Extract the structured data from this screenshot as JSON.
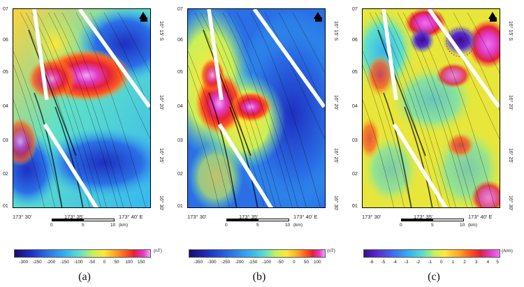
{
  "panels": [
    {
      "label": "(a)",
      "colorbar": {
        "ticks": [
          "-300",
          "-250",
          "-200",
          "-150",
          "-100",
          "-50",
          "0",
          "50",
          "100",
          "150"
        ],
        "unit": "(nT)"
      }
    },
    {
      "label": "(b)",
      "colorbar": {
        "ticks": [
          "-350",
          "-300",
          "-250",
          "-200",
          "-150",
          "-100",
          "-50",
          "0",
          "50",
          "100"
        ],
        "unit": "(nT)"
      }
    },
    {
      "label": "(c)",
      "colorbar": {
        "ticks": [
          "-6",
          "-5",
          "-4",
          "-3",
          "-2",
          "-1",
          "0",
          "1",
          "2",
          "3",
          "4",
          "5"
        ],
        "unit": "(A/m)"
      }
    }
  ],
  "axes": {
    "y_ticks": [
      "07",
      "06",
      "05",
      "04",
      "03",
      "02",
      "01"
    ],
    "lat_labels": [
      "16° 15' S",
      "16° 20'",
      "16° 25'",
      "16° 30'"
    ],
    "lon_labels": [
      "173° 30'",
      "173° 35'",
      "173° 40' E"
    ]
  },
  "scalebar": {
    "start": "0",
    "mid": "5",
    "end": "10",
    "unit": "(km)"
  },
  "colors": {
    "magnetic_scale": [
      "#1a0a6e",
      "#1f2fc0",
      "#2a6fe6",
      "#36b6f0",
      "#5fe0c8",
      "#c8f05a",
      "#ffe63a",
      "#ffa624",
      "#ff5a1e",
      "#e3213b",
      "#e03cc8",
      "#f4a6f4"
    ],
    "magnetization_scale": [
      "#3a0a8a",
      "#5a2ad0",
      "#3d6ef0",
      "#36b6f0",
      "#5fe0c8",
      "#c8f05a",
      "#ffe63a",
      "#ffa624",
      "#ff5a1e",
      "#e3213b",
      "#e03cc8",
      "#f070f0"
    ]
  }
}
